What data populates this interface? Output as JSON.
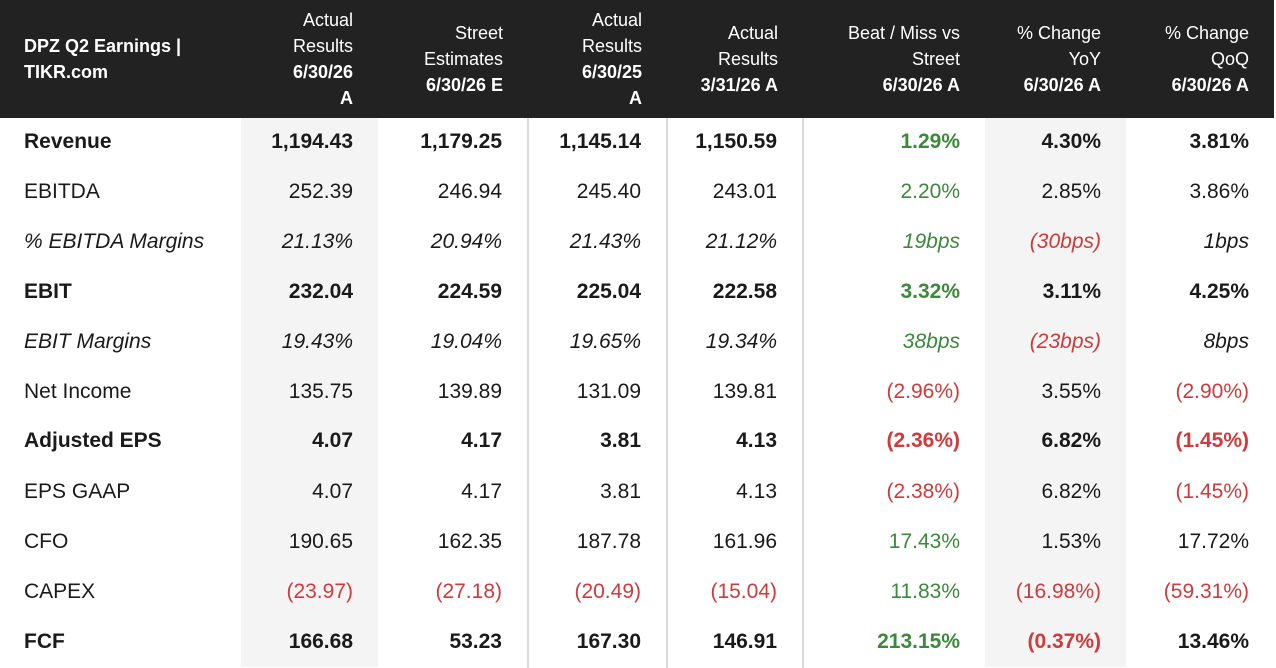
{
  "header": {
    "title": "DPZ Q2 Earnings | TIKR.com",
    "columns": [
      {
        "label": "Actual\nResults",
        "date": "6/30/26\nA"
      },
      {
        "label": "Street\nEstimates",
        "date": "6/30/26 E"
      },
      {
        "label": "Actual\nResults",
        "date": "6/30/25\nA"
      },
      {
        "label": "Actual\nResults",
        "date": "3/31/26 A"
      },
      {
        "label": "Beat / Miss vs\nStreet",
        "date": "6/30/26 A"
      },
      {
        "label": "% Change\nYoY",
        "date": "6/30/26 A"
      },
      {
        "label": "% Change\nQoQ",
        "date": "6/30/26 A"
      }
    ]
  },
  "colors": {
    "header_bg": "#222222",
    "positive": "#3a8a3a",
    "negative": "#d03a3a",
    "shade": "#f4f4f4"
  },
  "rows": [
    {
      "label": "Revenue",
      "values": [
        "1,194.43",
        "1,179.25",
        "1,145.14",
        "1,150.59",
        "1.29%",
        "4.30%",
        "3.81%"
      ]
    },
    {
      "label": "EBITDA",
      "values": [
        "252.39",
        "246.94",
        "245.40",
        "243.01",
        "2.20%",
        "2.85%",
        "3.86%"
      ]
    },
    {
      "label": "% EBITDA Margins",
      "values": [
        "21.13%",
        "20.94%",
        "21.43%",
        "21.12%",
        "19bps",
        "(30bps)",
        "1bps"
      ]
    },
    {
      "label": "EBIT",
      "values": [
        "232.04",
        "224.59",
        "225.04",
        "222.58",
        "3.32%",
        "3.11%",
        "4.25%"
      ]
    },
    {
      "label": "EBIT Margins",
      "values": [
        "19.43%",
        "19.04%",
        "19.65%",
        "19.34%",
        "38bps",
        "(23bps)",
        "8bps"
      ]
    },
    {
      "label": "Net Income",
      "values": [
        "135.75",
        "139.89",
        "131.09",
        "139.81",
        "(2.96%)",
        "3.55%",
        "(2.90%)"
      ]
    },
    {
      "label": "Adjusted EPS",
      "values": [
        "4.07",
        "4.17",
        "3.81",
        "4.13",
        "(2.36%)",
        "6.82%",
        "(1.45%)"
      ]
    },
    {
      "label": "EPS GAAP",
      "values": [
        "4.07",
        "4.17",
        "3.81",
        "4.13",
        "(2.38%)",
        "6.82%",
        "(1.45%)"
      ]
    },
    {
      "label": "CFO",
      "values": [
        "190.65",
        "162.35",
        "187.78",
        "161.96",
        "17.43%",
        "1.53%",
        "17.72%"
      ]
    },
    {
      "label": "CAPEX",
      "values": [
        "(23.97)",
        "(27.18)",
        "(20.49)",
        "(15.04)",
        "11.83%",
        "(16.98%)",
        "(59.31%)"
      ]
    },
    {
      "label": "FCF",
      "values": [
        "166.68",
        "53.23",
        "167.30",
        "146.91",
        "213.15%",
        "(0.37%)",
        "13.46%"
      ]
    }
  ]
}
